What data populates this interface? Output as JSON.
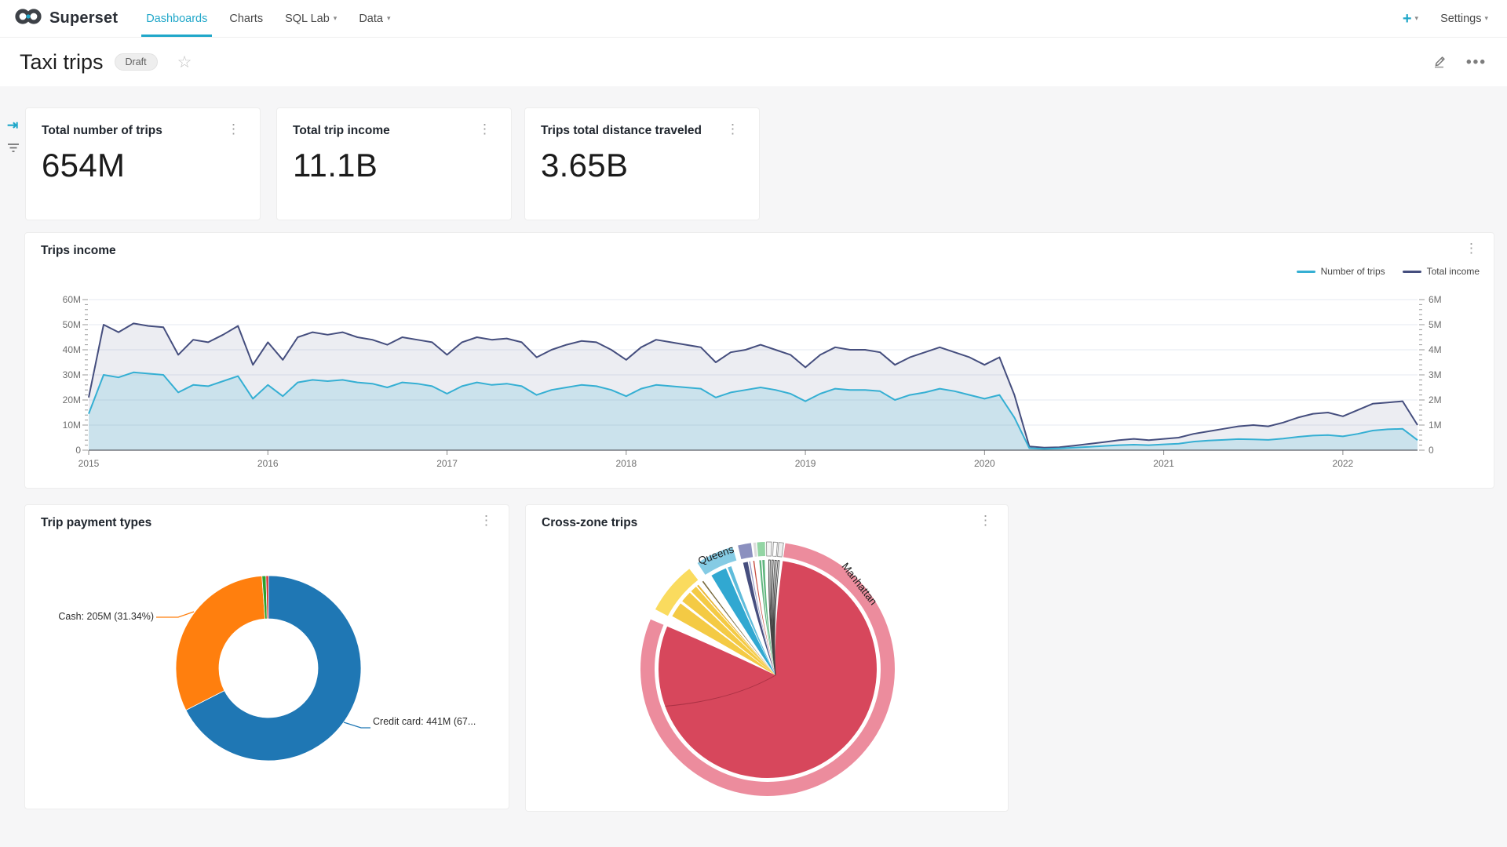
{
  "nav": {
    "brand": "Superset",
    "items": [
      {
        "label": "Dashboards",
        "active": true
      },
      {
        "label": "Charts",
        "active": false
      },
      {
        "label": "SQL Lab",
        "active": false,
        "has_menu": true
      },
      {
        "label": "Data",
        "active": false,
        "has_menu": true
      }
    ],
    "new_label": "+",
    "settings_label": "Settings"
  },
  "header": {
    "title": "Taxi trips",
    "status_badge": "Draft"
  },
  "kpis": [
    {
      "title": "Total number of trips",
      "value": "654M"
    },
    {
      "title": "Total trip income",
      "value": "11.1B"
    },
    {
      "title": "Trips total distance traveled",
      "value": "3.65B"
    }
  ],
  "colors": {
    "accent": "#20A7C9",
    "trips_line": "#35AFD3",
    "income_line": "#454E7E",
    "donut_blue": "#1f77b4",
    "donut_orange": "#ff7f0e",
    "donut_green": "#2ca02c",
    "donut_red": "#d62728",
    "chord_ring_pink": "#EC8C9D",
    "chord_fill_crimson": "#D7475C"
  },
  "chart_data": [
    {
      "id": "trips-income",
      "type": "area",
      "title": "Trips income",
      "legend_position": "top-right",
      "grid": true,
      "legend": [
        {
          "name": "Number of trips",
          "color": "#35AFD3"
        },
        {
          "name": "Total income",
          "color": "#454E7E"
        }
      ],
      "x_range": [
        "2015-01",
        "2022-06"
      ],
      "x_tick_labels": [
        "2015",
        "2016",
        "2017",
        "2018",
        "2019",
        "2020",
        "2021",
        "2022"
      ],
      "y_left": {
        "label": "",
        "min": 0,
        "max": 60,
        "unit": "M",
        "tick_labels": [
          "60M",
          "50M",
          "40M",
          "30M",
          "20M",
          "10M",
          "0"
        ]
      },
      "y_right": {
        "label": "",
        "min": 0,
        "max": 6,
        "unit": "M",
        "tick_labels": [
          "6M",
          "5M",
          "4M",
          "3M",
          "2M",
          "1M",
          "0"
        ]
      },
      "series": [
        {
          "name": "Number of trips",
          "axis": "left",
          "color": "#35AFD3",
          "area_opacity": 0.18,
          "unit": "M",
          "values": [
            14.5,
            30.0,
            29.0,
            31.0,
            30.5,
            30.0,
            23.0,
            26.0,
            25.5,
            27.5,
            29.5,
            20.5,
            26.0,
            21.5,
            27.0,
            28.0,
            27.5,
            28.0,
            27.0,
            26.5,
            25.0,
            27.0,
            26.5,
            25.5,
            22.5,
            25.5,
            27.0,
            26.0,
            26.5,
            25.5,
            22.0,
            24.0,
            25.0,
            26.0,
            25.5,
            24.0,
            21.5,
            24.5,
            26.0,
            25.5,
            25.0,
            24.5,
            21.0,
            23.0,
            24.0,
            25.0,
            24.0,
            22.5,
            19.5,
            22.5,
            24.5,
            24.0,
            24.0,
            23.5,
            20.0,
            22.0,
            23.0,
            24.5,
            23.5,
            22.0,
            20.5,
            22.0,
            13.0,
            0.8,
            0.5,
            0.7,
            1.0,
            1.3,
            1.7,
            2.0,
            2.2,
            2.0,
            2.3,
            2.6,
            3.4,
            3.8,
            4.1,
            4.4,
            4.3,
            4.1,
            4.6,
            5.3,
            5.8,
            6.0,
            5.5,
            6.5,
            7.8,
            8.3,
            8.5,
            4.0
          ]
        },
        {
          "name": "Total income",
          "axis": "right",
          "color": "#454E7E",
          "area_opacity": 0.1,
          "unit": "M",
          "values": [
            2.1,
            5.0,
            4.7,
            5.05,
            4.95,
            4.9,
            3.8,
            4.4,
            4.3,
            4.6,
            4.95,
            3.4,
            4.3,
            3.6,
            4.5,
            4.7,
            4.6,
            4.7,
            4.5,
            4.4,
            4.2,
            4.5,
            4.4,
            4.3,
            3.8,
            4.3,
            4.5,
            4.4,
            4.45,
            4.3,
            3.7,
            4.0,
            4.2,
            4.35,
            4.3,
            4.0,
            3.6,
            4.1,
            4.4,
            4.3,
            4.2,
            4.1,
            3.5,
            3.9,
            4.0,
            4.2,
            4.0,
            3.8,
            3.3,
            3.8,
            4.1,
            4.0,
            4.0,
            3.9,
            3.4,
            3.7,
            3.9,
            4.1,
            3.9,
            3.7,
            3.4,
            3.7,
            2.2,
            0.15,
            0.1,
            0.12,
            0.18,
            0.25,
            0.32,
            0.4,
            0.45,
            0.4,
            0.45,
            0.5,
            0.65,
            0.75,
            0.85,
            0.95,
            1.0,
            0.95,
            1.1,
            1.3,
            1.45,
            1.5,
            1.35,
            1.6,
            1.85,
            1.9,
            1.95,
            1.0
          ]
        }
      ]
    },
    {
      "id": "trip-payment-types",
      "type": "pie",
      "title": "Trip payment types",
      "donut": true,
      "slices": [
        {
          "label": "Credit card",
          "value": 441,
          "pct": 67.43,
          "color": "#1f77b4",
          "callout": "Credit card: 441M (67..."
        },
        {
          "label": "Cash",
          "value": 205,
          "pct": 31.34,
          "color": "#ff7f0e",
          "callout": "Cash: 205M (31.34%)"
        },
        {
          "label": "",
          "value": 4.5,
          "pct": 0.7,
          "color": "#2ca02c",
          "callout": ""
        },
        {
          "label": "",
          "value": 2.8,
          "pct": 0.45,
          "color": "#d62728",
          "callout": ""
        }
      ]
    },
    {
      "id": "cross-zone-trips",
      "type": "chord",
      "title": "Cross-zone trips",
      "visible_labels": [
        "Queens",
        "Manhattan"
      ],
      "dominant": {
        "label": "Manhattan",
        "ring_color": "#EC8C9D",
        "chord_color": "#D7475C"
      },
      "arcs": [
        {
          "a0": 8,
          "a1": 293,
          "color": "#EC8C9D",
          "label": "Manhattan",
          "label_angle": 47,
          "label_rotate": 52
        },
        {
          "a0": -62,
          "a1": -38,
          "color": "#FADB5E",
          "label": ""
        },
        {
          "a0": -33.5,
          "a1": -16,
          "color": "#85CBE4",
          "label": "Queens",
          "label_angle": -24.5,
          "label_rotate": -20
        },
        {
          "a0": -13.5,
          "a1": -7.5,
          "color": "#8B90BF",
          "label": ""
        },
        {
          "a0": -6.5,
          "a1": -5.3,
          "color": "#dcdcdc",
          "label": ""
        },
        {
          "a0": -4.8,
          "a1": -1.2,
          "color": "#93D5A4",
          "label": ""
        },
        {
          "a0": -0.5,
          "a1": 1.8,
          "color": "#f5f5f5",
          "stroke": "#888",
          "label": ""
        },
        {
          "a0": 2.6,
          "a1": 4.4,
          "color": "#ffffff",
          "stroke": "#888",
          "label": ""
        },
        {
          "a0": 5.0,
          "a1": 7.2,
          "color": "#eeeeee",
          "stroke": "#888",
          "label": ""
        }
      ],
      "ribbons": [
        {
          "a0": -61,
          "a1": -53,
          "color": "#F3C73A",
          "op": 0.95
        },
        {
          "a0": -51.5,
          "a1": -45.5,
          "color": "#F3C73A",
          "op": 0.95
        },
        {
          "a0": -44.5,
          "a1": -41,
          "color": "#F3C73A",
          "op": 0.95
        },
        {
          "a0": -40.3,
          "a1": -39.4,
          "color": "#E8B32A",
          "op": 0.95
        },
        {
          "a0": -36.8,
          "a1": -36.1,
          "color": "#6b5b2a",
          "op": 0.9
        },
        {
          "a0": -31,
          "a1": -22.5,
          "color": "#2AA5CF",
          "op": 0.97
        },
        {
          "a0": -21.5,
          "a1": -19.5,
          "color": "#2AA5CF",
          "op": 0.75
        },
        {
          "a0": -13,
          "a1": -10.5,
          "color": "#3C4577",
          "op": 0.95
        },
        {
          "a0": -9.8,
          "a1": -9.2,
          "color": "#8B90BF",
          "op": 0.9
        },
        {
          "a0": -7.6,
          "a1": -7.0,
          "color": "#C0392B",
          "op": 0.9
        },
        {
          "a0": -4.4,
          "a1": -3.4,
          "color": "#4FAE71",
          "op": 0.9
        },
        {
          "a0": -2.8,
          "a1": -1.6,
          "color": "#4FAE71",
          "op": 0.9
        },
        {
          "a0": 0.6,
          "a1": 1.4,
          "color": "#ffffff",
          "op": 0.9,
          "outline": true
        },
        {
          "a0": 2.2,
          "a1": 3.0,
          "color": "#ffffff",
          "op": 0.9,
          "outline": true
        },
        {
          "a0": 3.8,
          "a1": 4.6,
          "color": "#ffffff",
          "op": 0.9,
          "outline": true
        },
        {
          "a0": 5.4,
          "a1": 6.2,
          "color": "#ffffff",
          "op": 0.9,
          "outline": true
        }
      ]
    }
  ]
}
